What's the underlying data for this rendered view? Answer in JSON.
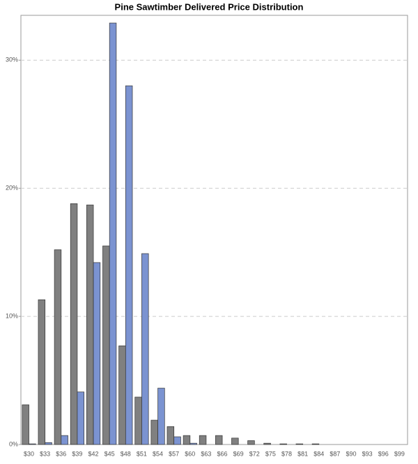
{
  "chart_data": {
    "type": "bar",
    "title": "Pine Sawtimber Delivered Price Distribution",
    "categories": [
      "$30",
      "$33",
      "$36",
      "$39",
      "$42",
      "$45",
      "$48",
      "$51",
      "$54",
      "$57",
      "$60",
      "$63",
      "$66",
      "$69",
      "$72",
      "$75",
      "$78",
      "$81",
      "$84",
      "$87",
      "$90",
      "$93",
      "$96",
      "$99"
    ],
    "series": [
      {
        "color": "#808080",
        "values": [
          3.1,
          11.3,
          15.2,
          18.8,
          18.7,
          15.5,
          7.7,
          3.7,
          1.9,
          1.4,
          0.7,
          0.7,
          0.7,
          0.5,
          0.3,
          0.1,
          0.05,
          0.05,
          0.05,
          0,
          0,
          0,
          0,
          0
        ]
      },
      {
        "color": "#7b93d1",
        "values": [
          0.05,
          0.15,
          0.7,
          4.1,
          14.2,
          32.9,
          28.0,
          14.9,
          4.4,
          0.6,
          0.1,
          0,
          0,
          0,
          0,
          0,
          0,
          0,
          0,
          0,
          0,
          0,
          0,
          0
        ]
      }
    ],
    "ylim": [
      0,
      33.5
    ],
    "yticks": [
      {
        "value": 0,
        "label": "0%"
      },
      {
        "value": 10,
        "label": "10%"
      },
      {
        "value": 20,
        "label": "20%"
      },
      {
        "value": 30,
        "label": "30%"
      }
    ],
    "grid": true
  }
}
